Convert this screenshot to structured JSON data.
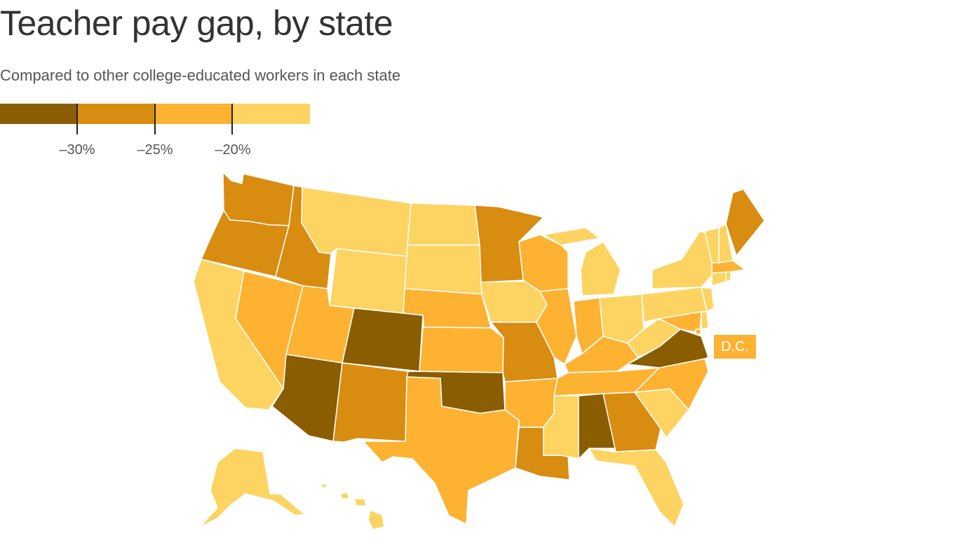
{
  "title": "Teacher pay gap, by state",
  "subtitle": "Compared to other college-educated workers in each state",
  "legend": {
    "colors": [
      "#8a5d00",
      "#d88c10",
      "#fdb232",
      "#fdd361"
    ],
    "breaks": [
      "–30%",
      "–25%",
      "–20%"
    ]
  },
  "dc_label": "D.C.",
  "chart_data": {
    "type": "choropleth",
    "title": "Teacher pay gap, by state",
    "subtitle": "Compared to other college-educated workers in each state",
    "bins": [
      "below –30%",
      "–30% to –25%",
      "–25% to –20%",
      "above –20%"
    ],
    "bin_colors": [
      "#8a5d00",
      "#d88c10",
      "#fdb232",
      "#fdd361"
    ],
    "states": {
      "AZ": 0,
      "CO": 0,
      "OK": 0,
      "AL": 0,
      "VA": 0,
      "WA": 1,
      "OR": 1,
      "ID": 1,
      "NM": 1,
      "MN": 1,
      "MO": 1,
      "LA": 1,
      "GA": 1,
      "ME": 1,
      "NV": 2,
      "UT": 2,
      "TX": 2,
      "KS": 2,
      "NE": 2,
      "AR": 2,
      "WI": 2,
      "IL": 2,
      "IN": 2,
      "KY": 2,
      "TN": 2,
      "NC": 2,
      "MA": 2,
      "MD": 2,
      "DC": 2,
      "CA": 3,
      "MT": 3,
      "WY": 3,
      "ND": 3,
      "SD": 3,
      "IA": 3,
      "MI": 3,
      "OH": 3,
      "PA": 3,
      "NY": 3,
      "VT": 3,
      "NH": 3,
      "CT": 3,
      "RI": 3,
      "NJ": 3,
      "DE": 3,
      "WV": 3,
      "SC": 3,
      "FL": 3,
      "MS": 3,
      "AK": 3,
      "HI": 3
    }
  }
}
